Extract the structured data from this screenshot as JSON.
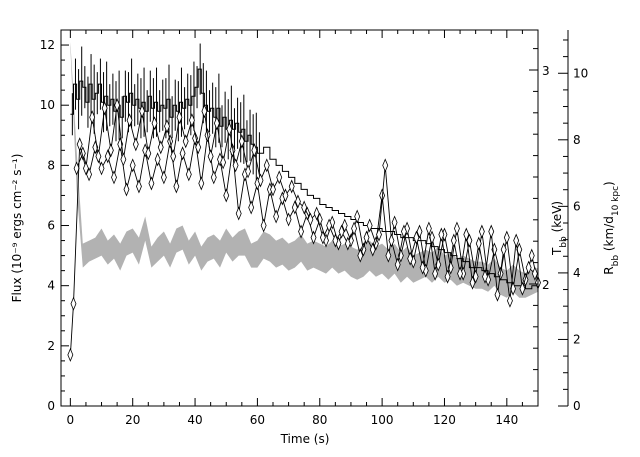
{
  "chart_data": {
    "type": "line",
    "xlabel": "Time (s)",
    "ylabel": "Flux (10⁻⁹ ergs cm⁻² s⁻¹)",
    "right_inner_label": "Tₕₕ (keV)",
    "right_inner_label_main": "T",
    "right_inner_label_sub": "bb",
    "right_inner_label_tail": " (keV)",
    "right_outer_label_main": "R",
    "right_outer_label_sub": "bb",
    "right_outer_label_mid": " (km/d",
    "right_outer_label_sub2": "10 kpc",
    "right_outer_label_tail": ")",
    "xlim": [
      -3,
      150
    ],
    "ylim": [
      0,
      12.5
    ],
    "x_ticks": [
      0,
      20,
      40,
      60,
      80,
      100,
      120,
      140
    ],
    "y_ticks": [
      0,
      2,
      4,
      6,
      8,
      10,
      12
    ],
    "temperature_ticks": [
      2,
      3
    ],
    "radius_ticks": [
      0,
      2,
      4,
      6,
      8,
      10
    ],
    "radius_scale_max": 11.3,
    "grid": false,
    "series": [
      {
        "role": "flux-histogram",
        "points": [
          [
            0,
            9.7
          ],
          [
            1,
            10.7
          ],
          [
            2,
            10.2
          ],
          [
            3,
            10.8
          ],
          [
            4,
            10.6
          ],
          [
            5,
            10.1
          ],
          [
            6,
            10.7
          ],
          [
            7,
            10.2
          ],
          [
            8,
            10.4
          ],
          [
            9,
            10.7
          ],
          [
            10,
            10.1
          ],
          [
            11,
            10.3
          ],
          [
            12,
            10.0
          ],
          [
            13,
            10.2
          ],
          [
            14,
            9.8
          ],
          [
            15,
            10.0
          ],
          [
            16,
            9.6
          ],
          [
            17,
            10.3
          ],
          [
            18,
            10.1
          ],
          [
            19,
            10.4
          ],
          [
            20,
            10.0
          ],
          [
            21,
            10.2
          ],
          [
            22,
            9.9
          ],
          [
            23,
            10.1
          ],
          [
            24,
            9.8
          ],
          [
            25,
            10.3
          ],
          [
            26,
            9.9
          ],
          [
            27,
            10.1
          ],
          [
            28,
            9.8
          ],
          [
            29,
            10.0
          ],
          [
            30,
            9.9
          ],
          [
            31,
            10.2
          ],
          [
            32,
            9.6
          ],
          [
            33,
            10.0
          ],
          [
            34,
            9.8
          ],
          [
            35,
            10.1
          ],
          [
            36,
            9.9
          ],
          [
            37,
            10.2
          ],
          [
            38,
            10.0
          ],
          [
            39,
            10.3
          ],
          [
            40,
            10.6
          ],
          [
            41,
            11.2
          ],
          [
            42,
            10.4
          ],
          [
            43,
            10.0
          ],
          [
            44,
            9.8
          ],
          [
            45,
            9.9
          ],
          [
            46,
            9.6
          ],
          [
            47,
            9.9
          ],
          [
            48,
            9.3
          ],
          [
            49,
            9.6
          ],
          [
            50,
            9.2
          ],
          [
            51,
            9.5
          ],
          [
            52,
            9.2
          ],
          [
            53,
            9.4
          ],
          [
            54,
            9.1
          ],
          [
            55,
            9.2
          ],
          [
            56,
            8.8
          ],
          [
            57,
            9.0
          ],
          [
            58,
            8.7
          ],
          [
            59,
            8.6
          ],
          [
            60,
            8.4
          ],
          [
            62,
            8.6
          ],
          [
            64,
            8.2
          ],
          [
            66,
            8.0
          ],
          [
            68,
            7.8
          ],
          [
            70,
            7.6
          ],
          [
            72,
            7.4
          ],
          [
            74,
            7.2
          ],
          [
            76,
            7.0
          ],
          [
            78,
            6.9
          ],
          [
            80,
            6.7
          ],
          [
            82,
            6.6
          ],
          [
            84,
            6.5
          ],
          [
            86,
            6.4
          ],
          [
            88,
            6.3
          ],
          [
            90,
            6.2
          ],
          [
            92,
            6.1
          ],
          [
            94,
            6.0
          ],
          [
            96,
            5.9
          ],
          [
            98,
            5.9
          ],
          [
            100,
            5.8
          ],
          [
            102,
            5.8
          ],
          [
            104,
            5.7
          ],
          [
            106,
            5.6
          ],
          [
            108,
            5.6
          ],
          [
            110,
            5.5
          ],
          [
            112,
            5.5
          ],
          [
            114,
            5.4
          ],
          [
            116,
            5.3
          ],
          [
            118,
            5.2
          ],
          [
            120,
            5.1
          ],
          [
            122,
            5.0
          ],
          [
            124,
            4.9
          ],
          [
            126,
            4.8
          ],
          [
            128,
            4.6
          ],
          [
            130,
            4.6
          ],
          [
            132,
            4.5
          ],
          [
            134,
            4.4
          ],
          [
            136,
            4.3
          ],
          [
            138,
            4.2
          ],
          [
            140,
            4.1
          ],
          [
            142,
            4.0
          ],
          [
            144,
            4.0
          ],
          [
            146,
            3.9
          ],
          [
            148,
            4.0
          ],
          [
            150,
            4.0
          ]
        ]
      },
      {
        "role": "temperature-diamonds",
        "points": [
          [
            2,
            7.9
          ],
          [
            4,
            8.4
          ],
          [
            6,
            7.7
          ],
          [
            8,
            8.6
          ],
          [
            10,
            7.9
          ],
          [
            12,
            8.3
          ],
          [
            14,
            7.6
          ],
          [
            16,
            8.7
          ],
          [
            18,
            7.2
          ],
          [
            20,
            8.0
          ],
          [
            22,
            7.3
          ],
          [
            24,
            8.5
          ],
          [
            26,
            7.4
          ],
          [
            28,
            8.2
          ],
          [
            30,
            7.6
          ],
          [
            32,
            8.8
          ],
          [
            34,
            7.3
          ],
          [
            36,
            8.4
          ],
          [
            38,
            7.7
          ],
          [
            40,
            8.9
          ],
          [
            42,
            7.4
          ],
          [
            44,
            9.0
          ],
          [
            46,
            7.6
          ],
          [
            48,
            8.2
          ],
          [
            50,
            7.0
          ],
          [
            52,
            8.5
          ],
          [
            54,
            6.4
          ],
          [
            56,
            7.7
          ],
          [
            58,
            6.6
          ],
          [
            60,
            7.4
          ],
          [
            62,
            6.0
          ],
          [
            64,
            7.2
          ],
          [
            66,
            6.3
          ],
          [
            68,
            6.9
          ],
          [
            70,
            6.2
          ],
          [
            72,
            6.6
          ],
          [
            74,
            5.8
          ],
          [
            76,
            6.4
          ],
          [
            78,
            5.6
          ],
          [
            80,
            6.2
          ],
          [
            82,
            5.5
          ],
          [
            84,
            6.1
          ],
          [
            86,
            5.4
          ],
          [
            88,
            6.0
          ],
          [
            90,
            5.5
          ],
          [
            92,
            6.3
          ],
          [
            94,
            5.2
          ],
          [
            96,
            6.0
          ],
          [
            98,
            5.4
          ],
          [
            100,
            7.0
          ],
          [
            102,
            5.0
          ],
          [
            104,
            6.1
          ],
          [
            106,
            5.0
          ],
          [
            108,
            5.9
          ],
          [
            110,
            4.8
          ],
          [
            112,
            5.8
          ],
          [
            114,
            4.5
          ],
          [
            116,
            5.6
          ],
          [
            118,
            4.7
          ],
          [
            120,
            5.7
          ],
          [
            122,
            4.6
          ],
          [
            124,
            5.9
          ],
          [
            126,
            4.4
          ],
          [
            128,
            5.5
          ],
          [
            130,
            4.3
          ],
          [
            132,
            5.8
          ],
          [
            134,
            4.2
          ],
          [
            136,
            5.2
          ],
          [
            138,
            4.4
          ],
          [
            140,
            5.6
          ],
          [
            142,
            3.9
          ],
          [
            144,
            5.2
          ],
          [
            146,
            4.2
          ],
          [
            148,
            5.0
          ],
          [
            150,
            4.1
          ]
        ]
      },
      {
        "role": "radius-diamonds",
        "points": [
          [
            0,
            1.7
          ],
          [
            1,
            3.4
          ],
          [
            3,
            8.7
          ],
          [
            5,
            7.9
          ],
          [
            7,
            9.6
          ],
          [
            9,
            8.3
          ],
          [
            11,
            9.9
          ],
          [
            13,
            8.5
          ],
          [
            15,
            10.0
          ],
          [
            17,
            8.2
          ],
          [
            19,
            9.5
          ],
          [
            21,
            8.7
          ],
          [
            23,
            9.8
          ],
          [
            25,
            8.4
          ],
          [
            27,
            9.4
          ],
          [
            29,
            8.6
          ],
          [
            31,
            9.3
          ],
          [
            33,
            8.3
          ],
          [
            35,
            9.6
          ],
          [
            37,
            8.8
          ],
          [
            39,
            9.5
          ],
          [
            41,
            8.6
          ],
          [
            43,
            9.8
          ],
          [
            45,
            8.3
          ],
          [
            47,
            9.4
          ],
          [
            49,
            8.1
          ],
          [
            51,
            9.2
          ],
          [
            53,
            8.0
          ],
          [
            55,
            8.8
          ],
          [
            57,
            7.8
          ],
          [
            59,
            8.5
          ],
          [
            61,
            7.5
          ],
          [
            63,
            8.0
          ],
          [
            65,
            7.2
          ],
          [
            67,
            7.6
          ],
          [
            69,
            7.0
          ],
          [
            71,
            7.3
          ],
          [
            73,
            6.8
          ],
          [
            75,
            6.6
          ],
          [
            77,
            6.2
          ],
          [
            79,
            6.4
          ],
          [
            81,
            5.6
          ],
          [
            83,
            6.0
          ],
          [
            85,
            5.5
          ],
          [
            87,
            5.8
          ],
          [
            89,
            5.4
          ],
          [
            91,
            5.9
          ],
          [
            93,
            5.0
          ],
          [
            95,
            5.6
          ],
          [
            97,
            5.2
          ],
          [
            99,
            5.7
          ],
          [
            101,
            8.0
          ],
          [
            103,
            5.5
          ],
          [
            105,
            4.7
          ],
          [
            107,
            5.8
          ],
          [
            109,
            4.9
          ],
          [
            111,
            5.6
          ],
          [
            113,
            4.6
          ],
          [
            115,
            5.9
          ],
          [
            117,
            4.4
          ],
          [
            119,
            5.7
          ],
          [
            121,
            4.3
          ],
          [
            123,
            5.5
          ],
          [
            125,
            4.4
          ],
          [
            127,
            5.7
          ],
          [
            129,
            4.1
          ],
          [
            131,
            5.4
          ],
          [
            133,
            4.3
          ],
          [
            135,
            5.8
          ],
          [
            137,
            3.7
          ],
          [
            139,
            5.2
          ],
          [
            141,
            3.5
          ],
          [
            143,
            5.5
          ],
          [
            145,
            3.9
          ],
          [
            147,
            4.6
          ],
          [
            149,
            4.4
          ]
        ]
      },
      {
        "role": "grey-band",
        "x": [
          0,
          2,
          4,
          6,
          8,
          10,
          12,
          14,
          16,
          18,
          20,
          22,
          24,
          26,
          28,
          30,
          32,
          34,
          36,
          38,
          40,
          42,
          44,
          46,
          48,
          50,
          52,
          54,
          56,
          58,
          60,
          62,
          64,
          66,
          68,
          70,
          72,
          74,
          76,
          78,
          80,
          82,
          84,
          86,
          88,
          90,
          92,
          94,
          96,
          98,
          100,
          102,
          104,
          106,
          108,
          110,
          112,
          114,
          116,
          118,
          120,
          122,
          124,
          126,
          128,
          130,
          132,
          134,
          136,
          138,
          140,
          142,
          144,
          146,
          148,
          150
        ],
        "upper": [
          12.1,
          8.5,
          5.4,
          5.5,
          5.6,
          5.9,
          5.5,
          5.7,
          5.4,
          5.8,
          5.9,
          5.6,
          6.3,
          5.3,
          5.6,
          5.8,
          5.4,
          5.9,
          6.0,
          5.5,
          5.8,
          5.3,
          5.6,
          5.7,
          5.5,
          5.9,
          5.6,
          5.8,
          5.9,
          5.4,
          5.5,
          5.8,
          5.7,
          5.5,
          5.6,
          5.4,
          5.5,
          5.7,
          5.4,
          5.5,
          5.4,
          5.3,
          5.5,
          5.3,
          5.4,
          5.3,
          5.2,
          5.3,
          5.5,
          5.3,
          5.4,
          5.2,
          5.4,
          5.1,
          5.3,
          5.0,
          5.1,
          5.2,
          5.1,
          5.3,
          5.0,
          5.1,
          4.9,
          5.0,
          4.9,
          4.8,
          4.8,
          4.7,
          4.9,
          4.6,
          4.5,
          4.7,
          4.5,
          4.4,
          4.5,
          4.6
        ],
        "lower": [
          11.9,
          7.2,
          4.6,
          4.8,
          4.9,
          5.0,
          4.7,
          4.9,
          4.5,
          5.0,
          5.1,
          4.7,
          5.5,
          4.6,
          4.8,
          5.0,
          4.6,
          5.1,
          5.2,
          4.7,
          5.0,
          4.5,
          4.8,
          4.9,
          4.6,
          5.1,
          4.8,
          5.0,
          5.0,
          4.6,
          4.6,
          4.9,
          4.8,
          4.6,
          4.7,
          4.5,
          4.6,
          4.8,
          4.5,
          4.6,
          4.5,
          4.4,
          4.6,
          4.4,
          4.5,
          4.3,
          4.2,
          4.3,
          4.5,
          4.3,
          4.4,
          4.2,
          4.4,
          4.1,
          4.3,
          4.1,
          4.2,
          4.3,
          4.1,
          4.3,
          4.1,
          4.2,
          4.0,
          4.1,
          4.0,
          3.9,
          3.9,
          3.8,
          4.0,
          3.7,
          3.6,
          3.8,
          3.6,
          3.6,
          3.7,
          3.8
        ]
      }
    ]
  }
}
